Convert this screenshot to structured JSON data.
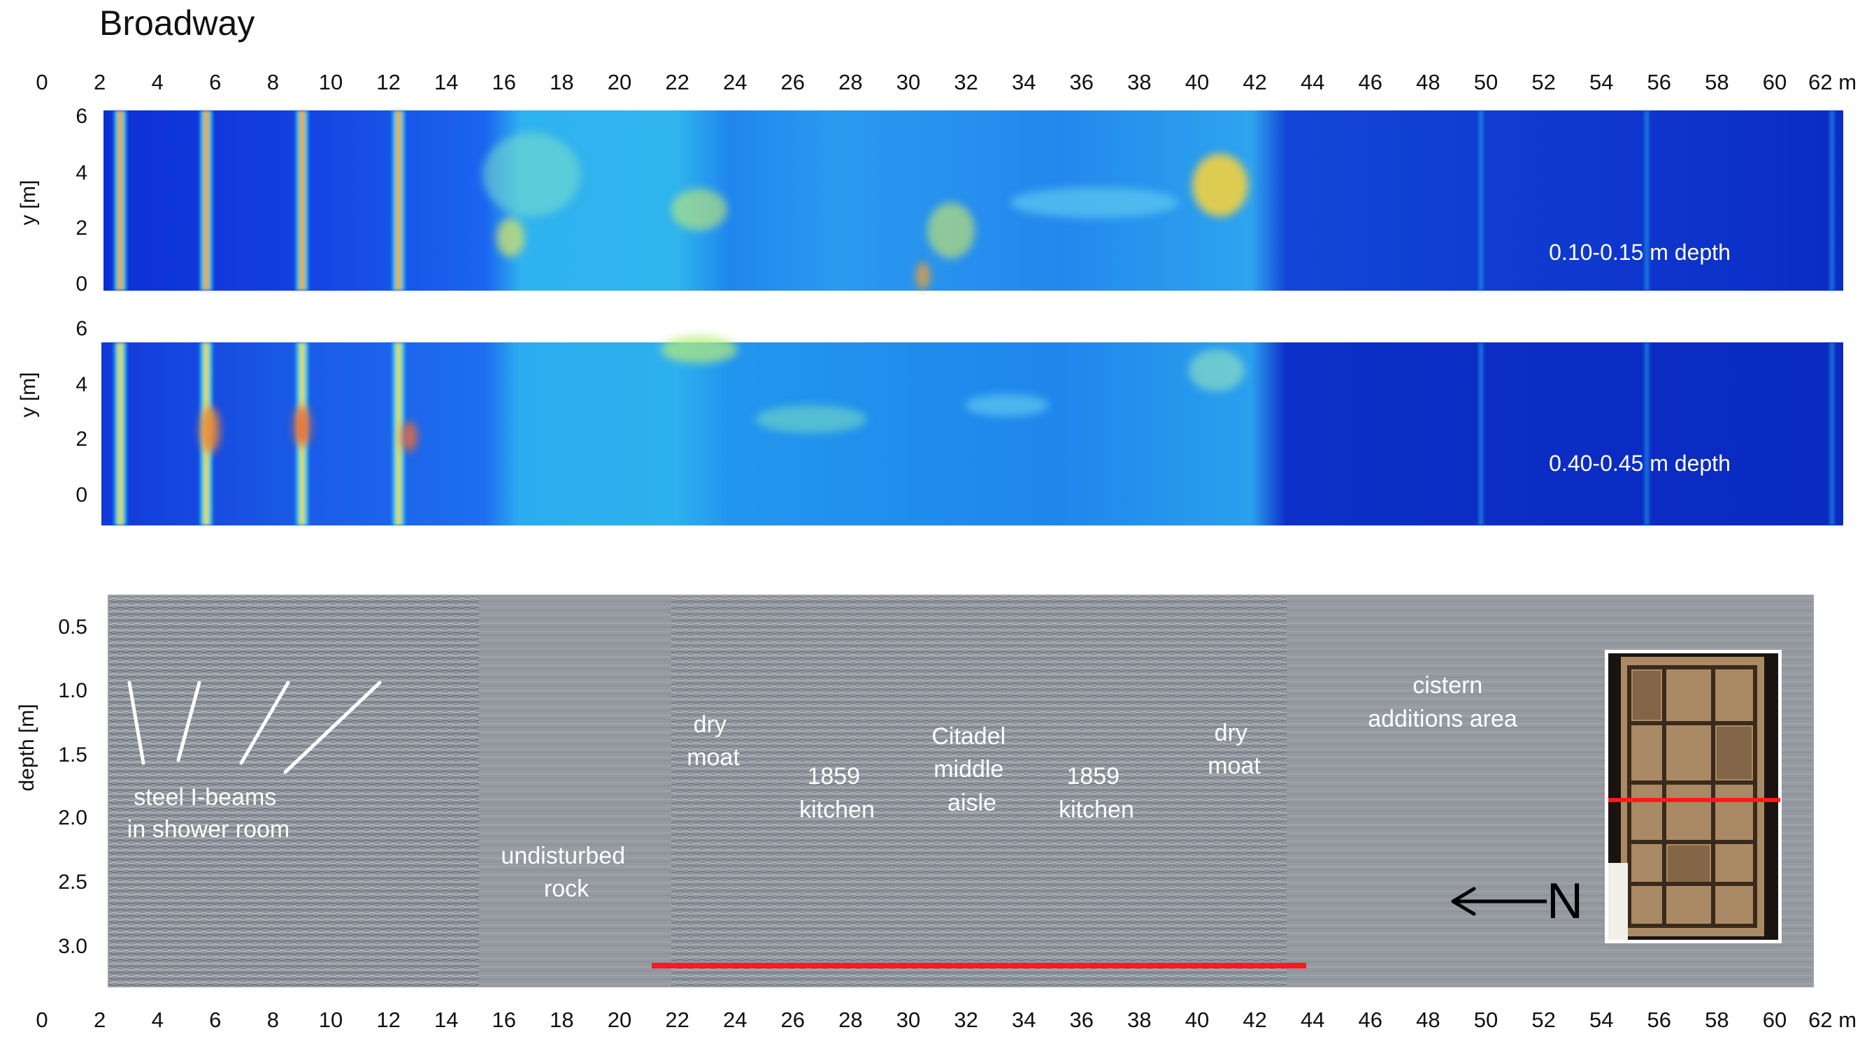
{
  "title": "Broadway",
  "x_axis": {
    "ticks": [
      "0",
      "2",
      "4",
      "6",
      "8",
      "10",
      "12",
      "14",
      "16",
      "18",
      "20",
      "22",
      "24",
      "26",
      "28",
      "30",
      "32",
      "34",
      "36",
      "38",
      "40",
      "42",
      "44",
      "46",
      "48",
      "50",
      "52",
      "54",
      "56",
      "58",
      "60",
      "62 m"
    ]
  },
  "panel_top": {
    "ylabel": "y [m]",
    "yticks": [
      "6",
      "4",
      "2",
      "0"
    ],
    "depth_label": "0.10-0.15 m depth"
  },
  "panel_mid": {
    "ylabel": "y [m]",
    "yticks": [
      "6",
      "4",
      "2",
      "0"
    ],
    "depth_label": "0.40-0.45 m depth"
  },
  "panel_radar": {
    "ylabel": "depth [m]",
    "yticks": [
      "0.5",
      "1.0",
      "1.5",
      "2.0",
      "2.5",
      "3.0"
    ],
    "annotations": {
      "steel_beams": [
        "steel I-beams",
        "in shower room"
      ],
      "undisturbed_rock": [
        "undisturbed",
        "rock"
      ],
      "dry_moat_1": [
        "dry",
        "moat"
      ],
      "kitchen_1": [
        "1859",
        "kitchen"
      ],
      "citadel": [
        "Citadel",
        "middle",
        "aisle"
      ],
      "kitchen_2": [
        "1859",
        "kitchen"
      ],
      "dry_moat_2": [
        "dry",
        "moat"
      ],
      "cistern": [
        "cistern",
        "additions area"
      ]
    },
    "north_label": "N"
  },
  "colors": {
    "line_red": "#ff1a1a",
    "scan_dark": "#0a2fc8",
    "radar_grey": "#8e949c"
  }
}
